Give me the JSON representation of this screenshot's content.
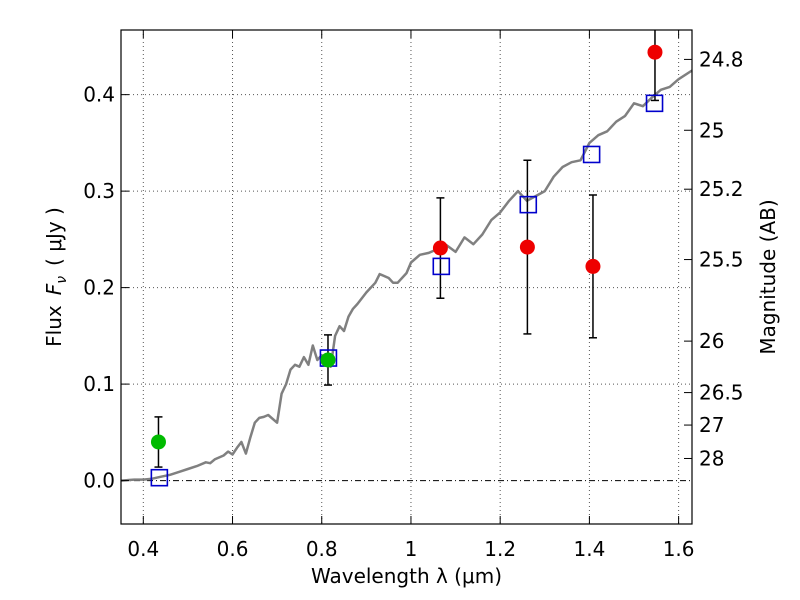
{
  "chart_data": {
    "type": "scatter",
    "xlabel": "Wavelength  λ (μm)",
    "ylabel_prefix": "Flux",
    "ylabel_symbol": "F",
    "ylabel_subscript": "ν",
    "ylabel_unit": "( μJy )",
    "y2label": "Magnitude (AB)",
    "xlim": [
      0.35,
      1.63
    ],
    "ylim": [
      -0.045,
      0.467
    ],
    "x_ticks": [
      0.4,
      0.6,
      0.8,
      1.0,
      1.2,
      1.4,
      1.6
    ],
    "x_tick_labels": [
      "0.4",
      "0.6",
      "0.8",
      "1",
      "1.2",
      "1.4",
      "1.6"
    ],
    "y_ticks": [
      0.0,
      0.1,
      0.2,
      0.3,
      0.4
    ],
    "y_tick_labels": [
      "0.0",
      "0.1",
      "0.2",
      "0.3",
      "0.4"
    ],
    "y2_ticks": [
      24.8,
      25,
      25.2,
      25.5,
      26,
      26.5,
      27,
      28
    ],
    "y2_tick_labels": [
      "24.8",
      "25",
      "25.2",
      "25.5",
      "26",
      "26.5",
      "27",
      "28"
    ],
    "grid": true,
    "colors": {
      "model": "#808080",
      "green_points": "#00bb00",
      "red_points": "#ee0000",
      "squares": "#0000cc",
      "error_bars": "#000000",
      "grid": "#555555"
    },
    "series": [
      {
        "style": "line",
        "x": [
          0.35,
          0.38,
          0.4,
          0.42,
          0.44,
          0.46,
          0.48,
          0.5,
          0.52,
          0.54,
          0.55,
          0.56,
          0.58,
          0.59,
          0.6,
          0.61,
          0.62,
          0.63,
          0.64,
          0.65,
          0.66,
          0.67,
          0.68,
          0.7,
          0.71,
          0.72,
          0.73,
          0.74,
          0.75,
          0.76,
          0.77,
          0.78,
          0.79,
          0.8,
          0.82,
          0.83,
          0.84,
          0.85,
          0.86,
          0.87,
          0.88,
          0.9,
          0.92,
          0.93,
          0.95,
          0.96,
          0.97,
          0.99,
          1.0,
          1.02,
          1.04,
          1.06,
          1.08,
          1.1,
          1.12,
          1.14,
          1.16,
          1.18,
          1.2,
          1.22,
          1.24,
          1.26,
          1.28,
          1.3,
          1.32,
          1.34,
          1.36,
          1.38,
          1.4,
          1.42,
          1.44,
          1.46,
          1.48,
          1.5,
          1.52,
          1.54,
          1.56,
          1.58,
          1.6,
          1.63
        ],
        "y": [
          0.0,
          0.001,
          0.001,
          0.002,
          0.004,
          0.006,
          0.009,
          0.012,
          0.015,
          0.019,
          0.018,
          0.022,
          0.026,
          0.03,
          0.027,
          0.034,
          0.04,
          0.028,
          0.045,
          0.06,
          0.065,
          0.066,
          0.068,
          0.06,
          0.09,
          0.1,
          0.115,
          0.12,
          0.118,
          0.128,
          0.12,
          0.14,
          0.125,
          0.13,
          0.118,
          0.15,
          0.16,
          0.155,
          0.17,
          0.178,
          0.183,
          0.195,
          0.205,
          0.214,
          0.21,
          0.205,
          0.205,
          0.215,
          0.226,
          0.234,
          0.236,
          0.24,
          0.244,
          0.237,
          0.252,
          0.245,
          0.255,
          0.27,
          0.278,
          0.29,
          0.3,
          0.29,
          0.295,
          0.3,
          0.315,
          0.325,
          0.33,
          0.332,
          0.35,
          0.358,
          0.362,
          0.372,
          0.378,
          0.391,
          0.388,
          0.397,
          0.405,
          0.408,
          0.416,
          0.425
        ]
      },
      {
        "style": "markers-circle-green",
        "x": [
          0.434,
          0.814
        ],
        "y": [
          0.04,
          0.125
        ],
        "err": [
          0.026,
          0.026
        ]
      },
      {
        "style": "markers-circle-red",
        "x": [
          1.066,
          1.261,
          1.408,
          1.547
        ],
        "y": [
          0.241,
          0.242,
          0.222,
          0.444
        ],
        "err": [
          0.052,
          0.09,
          0.074,
          0.05
        ]
      },
      {
        "style": "markers-square-open",
        "x": [
          0.436,
          0.815,
          1.068,
          1.263,
          1.405,
          1.546
        ],
        "y": [
          0.003,
          0.127,
          0.222,
          0.286,
          0.338,
          0.391
        ]
      }
    ]
  }
}
